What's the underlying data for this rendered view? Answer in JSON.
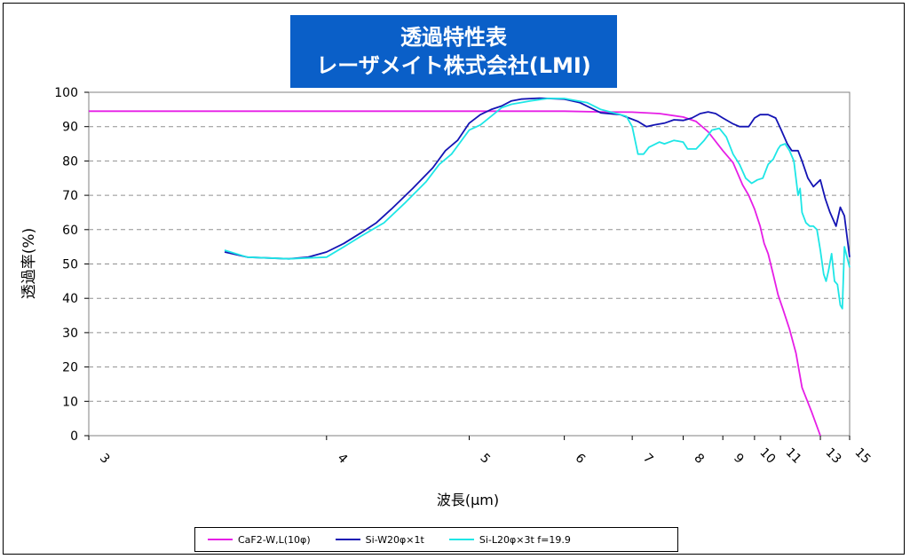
{
  "chart_data": {
    "type": "line",
    "title_line1": "透過特性表",
    "title_line2": "レーザメイト株式会社(LMI)",
    "xlabel": "波長(μm)",
    "ylabel": "透過率(%)",
    "ylim": [
      0,
      100
    ],
    "y_ticks": [
      "0",
      "10",
      "20",
      "30",
      "40",
      "50",
      "60",
      "70",
      "80",
      "90",
      "100"
    ],
    "x_ticks": [
      "3",
      "4",
      "5",
      "6",
      "7",
      "8",
      "9",
      "10",
      "11",
      "13",
      "15"
    ],
    "x_scale": "reciprocal (wavenumber)",
    "grid": "horizontal dashed",
    "legend_position": "bottom",
    "series": [
      {
        "name": "CaF2-W,L(10φ)",
        "color": "#e61ee6",
        "points": [
          [
            3.0,
            94.5
          ],
          [
            4.0,
            94.5
          ],
          [
            5.0,
            94.5
          ],
          [
            5.5,
            94.5
          ],
          [
            6.0,
            94.5
          ],
          [
            6.5,
            94.3
          ],
          [
            7.0,
            94.2
          ],
          [
            7.5,
            93.8
          ],
          [
            8.0,
            92.8
          ],
          [
            8.3,
            91.5
          ],
          [
            8.6,
            88.5
          ],
          [
            9.0,
            83.0
          ],
          [
            9.3,
            79.5
          ],
          [
            9.6,
            73.0
          ],
          [
            9.8,
            70.0
          ],
          [
            10.0,
            66.0
          ],
          [
            10.2,
            61.0
          ],
          [
            10.35,
            56.0
          ],
          [
            10.5,
            53.0
          ],
          [
            10.7,
            47.0
          ],
          [
            10.9,
            41.0
          ],
          [
            11.1,
            37.0
          ],
          [
            11.4,
            31.0
          ],
          [
            11.7,
            24.0
          ],
          [
            12.0,
            14.0
          ],
          [
            12.5,
            7.0
          ],
          [
            13.0,
            0.0
          ]
        ]
      },
      {
        "name": "Si-W20φ×1t",
        "color": "#1414b4",
        "points": [
          [
            3.5,
            53.5
          ],
          [
            3.6,
            52.0
          ],
          [
            3.8,
            51.5
          ],
          [
            3.9,
            52.0
          ],
          [
            4.0,
            53.5
          ],
          [
            4.1,
            56.0
          ],
          [
            4.2,
            59.0
          ],
          [
            4.3,
            62.0
          ],
          [
            4.4,
            66.0
          ],
          [
            4.55,
            72.0
          ],
          [
            4.7,
            78.0
          ],
          [
            4.8,
            83.0
          ],
          [
            4.9,
            86.0
          ],
          [
            5.0,
            91.0
          ],
          [
            5.1,
            93.5
          ],
          [
            5.2,
            95.0
          ],
          [
            5.3,
            96.0
          ],
          [
            5.4,
            97.5
          ],
          [
            5.5,
            98.0
          ],
          [
            5.7,
            98.3
          ],
          [
            6.0,
            98.0
          ],
          [
            6.2,
            97.0
          ],
          [
            6.5,
            94.0
          ],
          [
            6.8,
            93.5
          ],
          [
            7.1,
            91.5
          ],
          [
            7.25,
            90.0
          ],
          [
            7.4,
            90.5
          ],
          [
            7.6,
            91.0
          ],
          [
            7.8,
            92.0
          ],
          [
            8.0,
            91.8
          ],
          [
            8.2,
            92.5
          ],
          [
            8.4,
            93.8
          ],
          [
            8.6,
            94.3
          ],
          [
            8.8,
            93.8
          ],
          [
            9.0,
            92.5
          ],
          [
            9.3,
            90.8
          ],
          [
            9.5,
            90.0
          ],
          [
            9.8,
            90.0
          ],
          [
            10.0,
            92.5
          ],
          [
            10.2,
            93.5
          ],
          [
            10.5,
            93.5
          ],
          [
            10.8,
            92.5
          ],
          [
            11.0,
            89.5
          ],
          [
            11.3,
            85.0
          ],
          [
            11.5,
            83.0
          ],
          [
            11.8,
            83.0
          ],
          [
            12.0,
            80.0
          ],
          [
            12.3,
            75.0
          ],
          [
            12.6,
            72.5
          ],
          [
            13.0,
            74.5
          ],
          [
            13.3,
            69.0
          ],
          [
            13.6,
            65.0
          ],
          [
            14.0,
            61.0
          ],
          [
            14.3,
            66.5
          ],
          [
            14.6,
            64.0
          ],
          [
            15.0,
            52.0
          ]
        ]
      },
      {
        "name": "Si-L20φ×3t f=19.9",
        "color": "#1ee6e6",
        "points": [
          [
            3.5,
            54.0
          ],
          [
            3.6,
            52.0
          ],
          [
            3.8,
            51.5
          ],
          [
            4.0,
            52.0
          ],
          [
            4.1,
            55.0
          ],
          [
            4.2,
            58.0
          ],
          [
            4.35,
            62.0
          ],
          [
            4.5,
            68.0
          ],
          [
            4.65,
            74.0
          ],
          [
            4.75,
            79.0
          ],
          [
            4.85,
            82.0
          ],
          [
            5.0,
            89.0
          ],
          [
            5.1,
            90.5
          ],
          [
            5.2,
            93.0
          ],
          [
            5.3,
            95.5
          ],
          [
            5.4,
            96.5
          ],
          [
            5.6,
            97.5
          ],
          [
            5.8,
            98.2
          ],
          [
            6.0,
            98.2
          ],
          [
            6.3,
            97.0
          ],
          [
            6.5,
            95.0
          ],
          [
            6.7,
            94.0
          ],
          [
            6.9,
            93.0
          ],
          [
            7.0,
            90.0
          ],
          [
            7.1,
            82.0
          ],
          [
            7.2,
            82.0
          ],
          [
            7.3,
            84.0
          ],
          [
            7.5,
            85.5
          ],
          [
            7.6,
            85.0
          ],
          [
            7.8,
            86.0
          ],
          [
            8.0,
            85.5
          ],
          [
            8.1,
            83.5
          ],
          [
            8.3,
            83.5
          ],
          [
            8.5,
            86.0
          ],
          [
            8.7,
            89.0
          ],
          [
            8.9,
            89.5
          ],
          [
            9.1,
            87.0
          ],
          [
            9.3,
            82.0
          ],
          [
            9.5,
            79.0
          ],
          [
            9.7,
            75.0
          ],
          [
            9.9,
            73.5
          ],
          [
            10.1,
            74.5
          ],
          [
            10.3,
            75.0
          ],
          [
            10.5,
            79.0
          ],
          [
            10.7,
            80.5
          ],
          [
            10.9,
            83.5
          ],
          [
            11.0,
            84.5
          ],
          [
            11.2,
            85.0
          ],
          [
            11.4,
            83.0
          ],
          [
            11.6,
            80.0
          ],
          [
            11.8,
            70.0
          ],
          [
            11.9,
            72.0
          ],
          [
            12.0,
            65.0
          ],
          [
            12.2,
            62.0
          ],
          [
            12.4,
            61.0
          ],
          [
            12.6,
            61.0
          ],
          [
            12.8,
            60.0
          ],
          [
            13.0,
            54.0
          ],
          [
            13.2,
            47.0
          ],
          [
            13.35,
            45.0
          ],
          [
            13.5,
            48.0
          ],
          [
            13.7,
            53.0
          ],
          [
            13.9,
            45.0
          ],
          [
            14.1,
            44.0
          ],
          [
            14.3,
            38.0
          ],
          [
            14.45,
            37.0
          ],
          [
            14.6,
            55.0
          ],
          [
            14.8,
            52.0
          ],
          [
            15.0,
            49.0
          ]
        ]
      }
    ]
  }
}
